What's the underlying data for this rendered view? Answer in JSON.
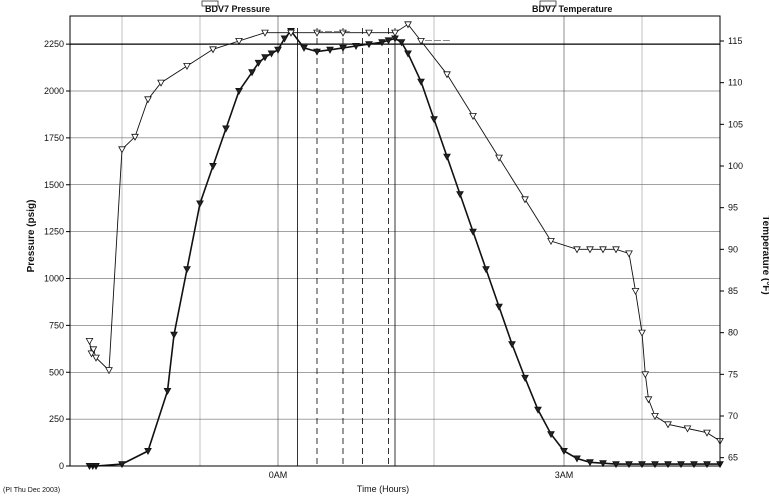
{
  "chart_data": {
    "type": "line",
    "title": "",
    "legend": [
      "BDV7 Pressure",
      "BDV7 Temperature"
    ],
    "ylabel": "Pressure (psig)",
    "y2label": "Temperature (°F)",
    "xlabel": "Time (Hours)",
    "footer_left": "(PI Thu Dec 2003)",
    "annotations": [
      "— — — —",
      "— — —"
    ],
    "ylim": [
      0,
      2400
    ],
    "y2lim": [
      64,
      118
    ],
    "xlim": [
      0,
      100
    ],
    "yticks": [
      "0",
      "250",
      "500",
      "750",
      "1000",
      "1250",
      "1500",
      "1750",
      "2000",
      "2250"
    ],
    "yticks_values": [
      0,
      250,
      500,
      750,
      1000,
      1250,
      1500,
      1750,
      2000,
      2250
    ],
    "y2ticks": [
      "65",
      "70",
      "75",
      "80",
      "85",
      "90",
      "95",
      "100",
      "105",
      "110",
      "115"
    ],
    "y2ticks_values": [
      65,
      70,
      75,
      80,
      85,
      90,
      95,
      100,
      105,
      110,
      115
    ],
    "xticks": [
      "0AM",
      "3AM"
    ],
    "xticks_values": [
      32,
      76
    ],
    "grid": true,
    "reference_line": 2250,
    "vertical_markers": [
      35,
      38,
      42,
      45,
      49,
      50
    ],
    "series": [
      {
        "name": "BDV7 Pressure",
        "axis": "left",
        "style": "marker",
        "x": [
          3,
          3.5,
          4,
          8,
          12,
          15,
          16,
          18,
          20,
          22,
          24,
          26,
          28,
          29,
          30,
          31,
          32,
          33,
          34,
          36,
          38,
          40,
          42,
          44,
          46,
          48,
          49,
          50,
          51,
          52,
          54,
          56,
          58,
          60,
          62,
          64,
          66,
          68,
          70,
          72,
          74,
          76,
          78,
          80,
          82,
          84,
          86,
          88,
          90,
          92,
          94,
          96,
          98,
          100
        ],
        "y": [
          0,
          0,
          0,
          10,
          80,
          400,
          700,
          1050,
          1400,
          1600,
          1800,
          2000,
          2100,
          2150,
          2180,
          2200,
          2220,
          2280,
          2320,
          2230,
          2210,
          2220,
          2230,
          2240,
          2250,
          2260,
          2270,
          2280,
          2260,
          2200,
          2050,
          1850,
          1650,
          1450,
          1250,
          1050,
          850,
          650,
          470,
          300,
          170,
          80,
          40,
          20,
          15,
          10,
          10,
          10,
          10,
          10,
          10,
          10,
          10,
          10
        ]
      },
      {
        "name": "BDV7 Temperature",
        "axis": "right",
        "style": "line-marker",
        "x": [
          3,
          3.3,
          3.6,
          4,
          6,
          8,
          10,
          12,
          14,
          18,
          22,
          26,
          30,
          34,
          38,
          42,
          46,
          50,
          52,
          54,
          58,
          62,
          66,
          70,
          74,
          78,
          80,
          82,
          84,
          86,
          87,
          88,
          88.5,
          89,
          90,
          92,
          95,
          98,
          100
        ],
        "y": [
          79,
          77.5,
          78,
          77,
          75.5,
          102,
          103.5,
          108,
          110,
          112,
          114,
          115,
          116,
          116,
          116,
          116,
          116,
          116,
          117,
          115,
          111,
          106,
          101,
          96,
          91,
          90,
          90,
          90,
          90,
          89.5,
          85,
          80,
          75,
          72,
          70,
          69,
          68.5,
          68,
          67
        ]
      }
    ]
  }
}
